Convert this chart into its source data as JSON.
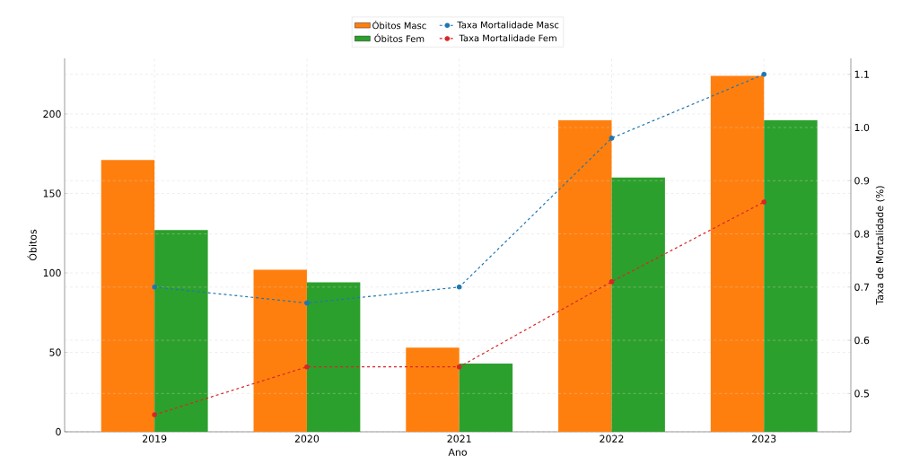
{
  "chart_data": {
    "type": "bar",
    "xlabel": "Ano",
    "ylabel": "Óbitos",
    "y2label": "Taxa de Mortalidade (%)",
    "categories": [
      "2019",
      "2020",
      "2021",
      "2022",
      "2023"
    ],
    "series": [
      {
        "name": "Óbitos Masc",
        "color": "#ff7f0e",
        "values": [
          171,
          102,
          53,
          196,
          224
        ]
      },
      {
        "name": "Óbitos Fem",
        "color": "#2ca02c",
        "values": [
          127,
          94,
          43,
          160,
          196
        ]
      },
      {
        "name": "Taxa Mortalidade Masc",
        "type": "line",
        "axis": "y2",
        "color": "#1f77b4",
        "marker": "circle",
        "line_style": "dashed",
        "values": [
          0.7,
          0.67,
          0.7,
          0.98,
          1.1
        ]
      },
      {
        "name": "Taxa Mortalidade Fem",
        "type": "line",
        "axis": "y2",
        "color": "#d62728",
        "marker": "circle",
        "line_style": "dashed",
        "values": [
          0.46,
          0.55,
          0.55,
          0.71,
          0.86
        ]
      }
    ],
    "ylim": [
      0,
      235
    ],
    "yticks": [
      0,
      50,
      100,
      150,
      200
    ],
    "y2lim": [
      0.428,
      1.13
    ],
    "y2ticks": [
      0.5,
      0.6,
      0.7,
      0.8,
      0.9,
      {
        "value": 1.0,
        "label": "1.0"
      },
      1.1
    ],
    "grid": true,
    "legend": "top"
  }
}
